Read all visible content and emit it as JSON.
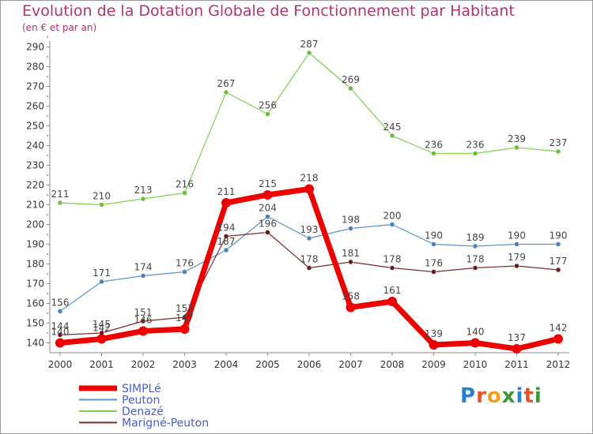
{
  "header": {
    "title": "Evolution de la Dotation Globale de Fonctionnement par Habitant",
    "subtitle": "(en € et par an)"
  },
  "logo": {
    "text": "Proxiti",
    "letter_colors": [
      "#2a7fd4",
      "#e8522a",
      "#f0a020",
      "#3a9a3a",
      "#2a7fd4",
      "#e8522a",
      "#3a9a3a"
    ]
  },
  "chart_data": {
    "type": "line",
    "title": "Evolution de la Dotation Globale de Fonctionnement par Habitant",
    "subtitle": "(en € et par an)",
    "xlabel": "",
    "ylabel": "",
    "x": [
      "2000",
      "2001",
      "2002",
      "2003",
      "2004",
      "2005",
      "2006",
      "2007",
      "2008",
      "2009",
      "2010",
      "2011",
      "2012"
    ],
    "ylim": [
      135,
      293
    ],
    "yticks": [
      140,
      150,
      160,
      170,
      180,
      190,
      200,
      210,
      220,
      230,
      240,
      250,
      260,
      270,
      280,
      290
    ],
    "grid": false,
    "legend_position": "bottom-left",
    "series": [
      {
        "name": "Denazé",
        "color": "#7fd04a",
        "marker": "#6abf3a",
        "width": 1.2,
        "values": [
          211,
          210,
          213,
          216,
          267,
          256,
          287,
          269,
          245,
          236,
          236,
          239,
          237
        ]
      },
      {
        "name": "Peuton",
        "color": "#5a93c8",
        "marker": "#4a83b8",
        "width": 1.2,
        "values": [
          156,
          171,
          174,
          176,
          187,
          204,
          193,
          198,
          200,
          190,
          189,
          190,
          190
        ]
      },
      {
        "name": "Marigné-Peuton",
        "color": "#7a2a2a",
        "marker": "#6a1a1a",
        "width": 1.2,
        "values": [
          144,
          145,
          151,
          153,
          194,
          196,
          178,
          181,
          178,
          176,
          178,
          179,
          177
        ]
      },
      {
        "name": "SIMPLé",
        "color": "#ee0000",
        "marker": "#ee0000",
        "width": 7,
        "values": [
          140,
          142,
          146,
          147,
          211,
          215,
          218,
          158,
          161,
          139,
          140,
          137,
          142
        ]
      }
    ],
    "legend": [
      "SIMPLé",
      "Peuton",
      "Denazé",
      "Marigné-Peuton"
    ]
  }
}
